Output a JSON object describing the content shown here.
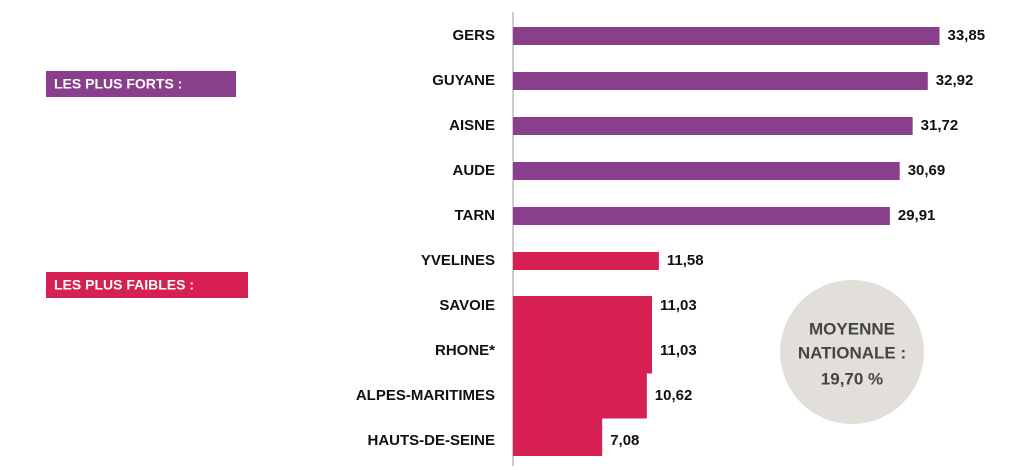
{
  "chart_data": {
    "type": "bar",
    "orientation": "horizontal",
    "categories": [
      "GERS",
      "GUYANE",
      "AISNE",
      "AUDE",
      "TARN",
      "YVELINES",
      "SAVOIE",
      "RHONE*",
      "ALPES-MARITIMES",
      "HAUTS-DE-SEINE"
    ],
    "values": [
      33.85,
      32.92,
      31.72,
      30.69,
      29.91,
      11.58,
      11.03,
      11.03,
      10.62,
      7.08
    ],
    "value_labels": [
      "33,85",
      "32,92",
      "31,72",
      "30,69",
      "29,91",
      "11,58",
      "11,03",
      "11,03",
      "10,62",
      "7,08"
    ],
    "colors": [
      "#8a3f8c",
      "#8a3f8c",
      "#8a3f8c",
      "#8a3f8c",
      "#8a3f8c",
      "#d61f52",
      "#d61f52",
      "#d61f52",
      "#d61f52",
      "#d61f52"
    ],
    "xlim": [
      0,
      35
    ],
    "group_labels": [
      {
        "text": "LES PLUS FORTS :",
        "color": "#8a3f8c"
      },
      {
        "text": "LES PLUS FAIBLES :",
        "color": "#d61f52"
      }
    ],
    "annotation": [
      "MOYENNE",
      "NATIONALE :",
      "19,70 %"
    ]
  }
}
